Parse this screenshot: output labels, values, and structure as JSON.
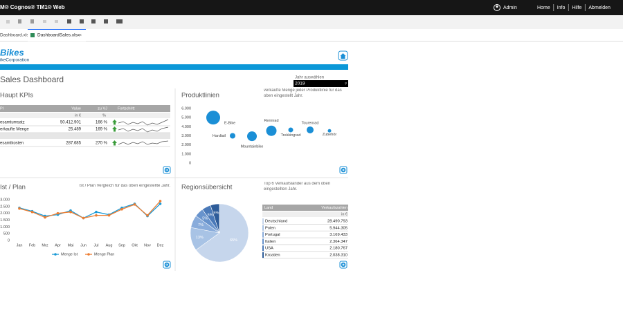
{
  "topbar": {
    "product": "M® Cognos® TM1® Web",
    "user": "Admin",
    "menu": [
      "Home",
      "Info",
      "Hilfe",
      "Abmelden"
    ]
  },
  "tabs": [
    "Dashboard.xlsx",
    "DashboardSales.xlsx"
  ],
  "logo": {
    "name": "Bikes",
    "company": "ikeCorporation"
  },
  "title": "Sales Dashboard",
  "year_selector": {
    "label": "Jahr auswählen",
    "value": "2019"
  },
  "kpis": {
    "title": "Haupt KPIs",
    "headers": [
      "PI",
      "Value",
      "zu VJ",
      "Fortschritt"
    ],
    "units": [
      "in €",
      "%"
    ],
    "rows": [
      [
        "esamtumsatz",
        "50.412.901",
        "166 %"
      ],
      [
        "erkaufte Menge",
        "25.489",
        "169 %"
      ],
      [
        "esamtkosten",
        "287.685",
        "270 %"
      ]
    ]
  },
  "chart_data": [
    {
      "type": "bubble",
      "title": "Produktlinien",
      "note": "verkaufte Menge jeder Produktlinie für das oben eingestellt Jahr.",
      "categories": [
        "E-Bike",
        "Hardtail",
        "Mountainbike",
        "Rennrad",
        "Trekkingrad",
        "Tourenrad",
        "Zubehör"
      ],
      "values": [
        5000,
        3000,
        2950,
        3550,
        3650,
        3650,
        3550
      ],
      "sizes": [
        10,
        4,
        7,
        7.5,
        3.5,
        5,
        2.5
      ],
      "color": "#1b8fd6",
      "ylim": [
        0,
        6000
      ],
      "yticks": [
        0,
        {
          "value": 1000,
          "label": "1.000"
        },
        {
          "value": 2000,
          "label": "2.000"
        },
        {
          "value": 3000,
          "label": "3.000"
        },
        {
          "value": 4000,
          "label": "4.000"
        },
        {
          "value": 5000,
          "label": "5.000"
        },
        {
          "value": 6000,
          "label": "6.000"
        }
      ]
    },
    {
      "type": "line",
      "title": "Ist / Plan",
      "note": "Ist / Plan Vergleich für das oben eingestellte Jahr.",
      "categories": [
        "Jan",
        "Feb",
        "Mrz",
        "Apr",
        "Mai",
        "Jun",
        "Jul",
        "Aug",
        "Sep",
        "Okt",
        "Nov",
        "Dez"
      ],
      "series": [
        {
          "name": "Menge Ist",
          "color": "#1b9ad6",
          "values": [
            2400,
            2150,
            1800,
            1900,
            2200,
            1650,
            2100,
            1900,
            2400,
            2700,
            1800,
            2700
          ]
        },
        {
          "name": "Menge Plan",
          "color": "#ed7d31",
          "values": [
            2350,
            2100,
            1700,
            2000,
            2100,
            1650,
            1850,
            1850,
            2300,
            2650,
            1850,
            2900
          ]
        }
      ],
      "ylim": [
        0,
        3000
      ],
      "yticks": [
        0,
        500,
        {
          "value": 1000,
          "label": "1.000"
        },
        {
          "value": 1500,
          "label": "1.500"
        },
        {
          "value": 2000,
          "label": "2.000"
        },
        {
          "value": 2500,
          "label": "2.500"
        },
        {
          "value": 3000,
          "label": "3.000"
        }
      ]
    },
    {
      "type": "pie",
      "title": "Regionsübersicht",
      "note": "Top 6 Verkaufsländer aus dem oben eingestellten Jahr.",
      "values": [
        65,
        13,
        7,
        5,
        5,
        5
      ],
      "value_labels": [
        "65%",
        "13%",
        "7%",
        "5%",
        "5%",
        "5%"
      ],
      "colors": [
        "#c6d6ec",
        "#a8c3e5",
        "#89acdb",
        "#6893cc",
        "#4a79b8",
        "#2e5c99"
      ]
    }
  ],
  "regions_table": {
    "headers": [
      "Land",
      "Verkaufszahlen"
    ],
    "unit": "in €",
    "rows": [
      [
        "Deutschland",
        "28.490.793"
      ],
      [
        "Polen",
        "5.944.305"
      ],
      [
        "Portugal",
        "3.169.433"
      ],
      [
        "Italien",
        "2.364.347"
      ],
      [
        "USA",
        "2.180.767"
      ],
      [
        "Kroatien",
        "2.038.310"
      ]
    ]
  }
}
